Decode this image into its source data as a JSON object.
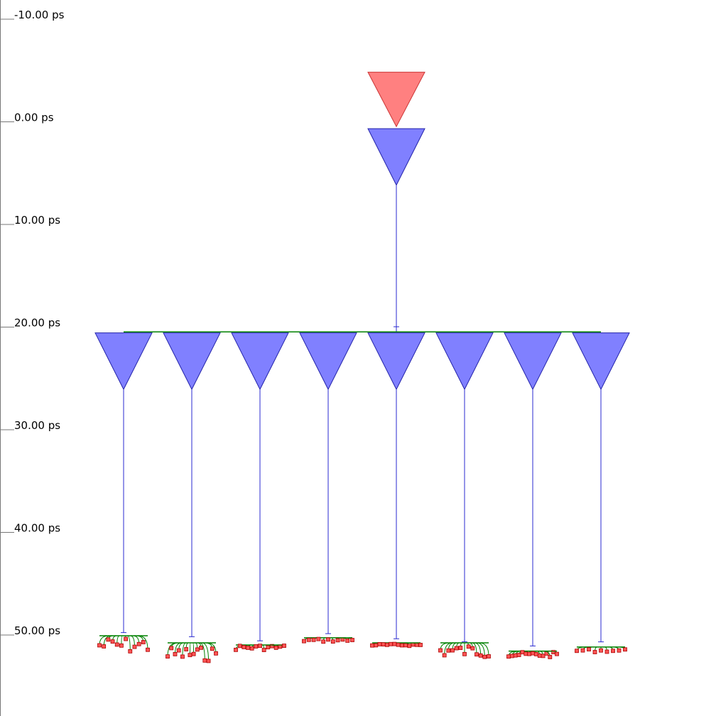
{
  "time_axis": {
    "unit": "ps",
    "ticks": [
      {
        "value": -10,
        "label": "-10.00 ps"
      },
      {
        "value": 0,
        "label": "0.00 ps"
      },
      {
        "value": 10,
        "label": "10.00 ps"
      },
      {
        "value": 20,
        "label": "20.00 ps"
      },
      {
        "value": 30,
        "label": "30.00 ps"
      },
      {
        "value": 40,
        "label": "40.00 ps"
      },
      {
        "value": 50,
        "label": "50.00 ps"
      }
    ]
  },
  "colors": {
    "source_buffer_fill": "#ff8080",
    "source_buffer_stroke": "#cc3333",
    "buffer_fill": "#8080ff",
    "buffer_stroke": "#2222aa",
    "wire": "#2a2ad0",
    "net": "#008000",
    "sink_fill": "#ff5555",
    "sink_stroke": "#aa0000",
    "axis": "#777777"
  },
  "tree": {
    "source": {
      "input_time_ps": -4.8,
      "output_time_ps": 0.5
    },
    "root_buffer": {
      "input_time_ps": 0.7,
      "output_time_ps": 6.2,
      "wire_end_ps": 20.0
    },
    "distribution_net_ps": 20.5,
    "leaf_buffers": [
      {
        "input_time_ps": 20.6,
        "output_time_ps": 26.1,
        "arrival_ps": 49.8,
        "net_ps": 50.1,
        "sink_min_ps": 50.3,
        "sink_max_ps": 51.8,
        "sink_count": 12
      },
      {
        "input_time_ps": 20.6,
        "output_time_ps": 26.1,
        "arrival_ps": 50.2,
        "net_ps": 50.8,
        "sink_min_ps": 51.2,
        "sink_max_ps": 52.6,
        "sink_count": 14
      },
      {
        "input_time_ps": 20.6,
        "output_time_ps": 26.1,
        "arrival_ps": 50.6,
        "net_ps": 51.0,
        "sink_min_ps": 51.0,
        "sink_max_ps": 51.5,
        "sink_count": 13
      },
      {
        "input_time_ps": 20.6,
        "output_time_ps": 26.1,
        "arrival_ps": 49.9,
        "net_ps": 50.3,
        "sink_min_ps": 50.4,
        "sink_max_ps": 50.7,
        "sink_count": 11
      },
      {
        "input_time_ps": 20.6,
        "output_time_ps": 26.1,
        "arrival_ps": 50.4,
        "net_ps": 50.8,
        "sink_min_ps": 50.9,
        "sink_max_ps": 51.1,
        "sink_count": 14
      },
      {
        "input_time_ps": 20.6,
        "output_time_ps": 26.1,
        "arrival_ps": 50.7,
        "net_ps": 50.8,
        "sink_min_ps": 51.0,
        "sink_max_ps": 52.2,
        "sink_count": 13
      },
      {
        "input_time_ps": 20.6,
        "output_time_ps": 26.1,
        "arrival_ps": 51.1,
        "net_ps": 51.6,
        "sink_min_ps": 51.7,
        "sink_max_ps": 52.2,
        "sink_count": 15
      },
      {
        "input_time_ps": 20.6,
        "output_time_ps": 26.1,
        "arrival_ps": 50.7,
        "net_ps": 51.2,
        "sink_min_ps": 51.4,
        "sink_max_ps": 51.7,
        "sink_count": 9
      }
    ]
  }
}
